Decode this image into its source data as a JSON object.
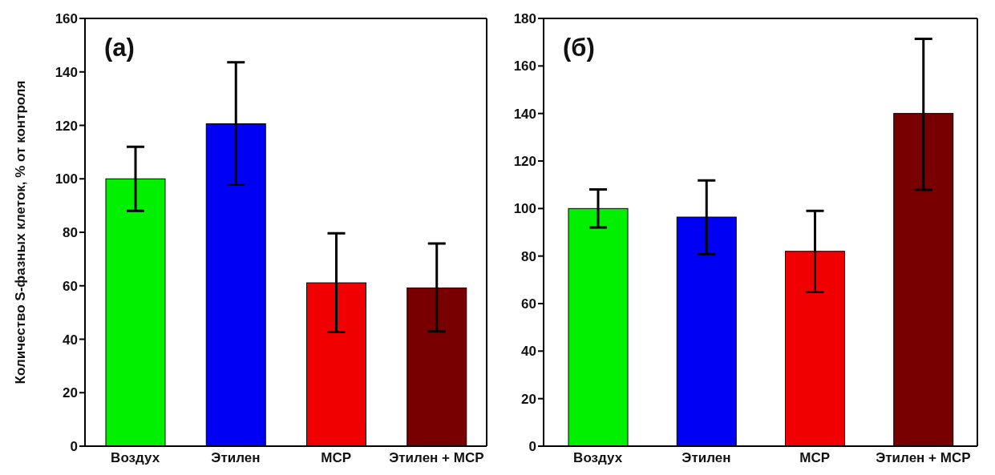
{
  "chart_data": [
    {
      "type": "bar",
      "annotations": [
        "(а)"
      ],
      "ylabel": "Количество S-фазных клеток, % от контроля",
      "categories": [
        "Воздух",
        "Этилен",
        "MCP",
        "Этилен + MCP"
      ],
      "values": [
        100,
        120.6,
        61.1,
        59.2
      ],
      "colors": [
        "#00f000",
        "#0000f5",
        "#f00000",
        "#780000"
      ],
      "errors": [
        [
          88,
          112
        ],
        [
          97.8,
          143.6
        ],
        [
          42.7,
          79.6
        ],
        [
          42.9,
          75.8
        ]
      ],
      "ylim": [
        0,
        160
      ],
      "yticks": [
        0,
        20,
        40,
        60,
        80,
        100,
        120,
        140,
        160
      ],
      "grid": false,
      "legend": false
    },
    {
      "type": "bar",
      "annotations": [
        "(б)"
      ],
      "categories": [
        "Воздух",
        "Этилен",
        "MCP",
        "Этилен + MCP"
      ],
      "values": [
        100,
        96.4,
        82,
        140
      ],
      "colors": [
        "#00f000",
        "#0000f5",
        "#f00000",
        "#780000"
      ],
      "errors": [
        [
          92,
          108
        ],
        [
          80.8,
          111.8
        ],
        [
          64.9,
          99
        ],
        [
          107.9,
          171.4
        ]
      ],
      "ylim": [
        0,
        180
      ],
      "yticks": [
        0,
        20,
        40,
        60,
        80,
        100,
        120,
        140,
        160,
        180
      ],
      "grid": false,
      "legend": false
    }
  ]
}
